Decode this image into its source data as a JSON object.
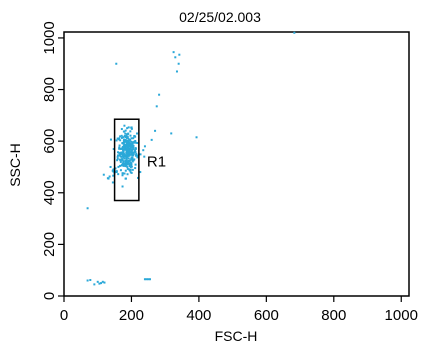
{
  "chart_data": {
    "type": "scatter",
    "title": "02/25/02.003",
    "xlabel": "FSC-H",
    "ylabel": "SSC-H",
    "xlim": [
      0,
      1023
    ],
    "ylim": [
      0,
      1023
    ],
    "xticks": [
      0,
      200,
      400,
      600,
      800,
      1000
    ],
    "yticks": [
      0,
      200,
      400,
      600,
      800,
      1000
    ],
    "point_color": "#2aa8d8",
    "gate": {
      "label": "R1",
      "x_range": [
        150,
        222
      ],
      "y_range": [
        370,
        685
      ]
    },
    "clusters": [
      {
        "cx": 188,
        "cy": 560,
        "sx": 14,
        "sy": 40,
        "n": 320
      },
      {
        "cx": 150,
        "cy": 475,
        "sx": 10,
        "sy": 10,
        "n": 14
      }
    ],
    "points": [
      [
        70,
        340
      ],
      [
        155,
        900
      ],
      [
        70,
        60
      ],
      [
        78,
        62
      ],
      [
        90,
        45
      ],
      [
        100,
        55
      ],
      [
        110,
        50
      ],
      [
        115,
        55
      ],
      [
        120,
        52
      ],
      [
        105,
        48
      ],
      [
        240,
        65
      ],
      [
        245,
        65
      ],
      [
        250,
        65
      ],
      [
        255,
        65
      ],
      [
        235,
        565
      ],
      [
        240,
        580
      ],
      [
        238,
        540
      ],
      [
        260,
        605
      ],
      [
        270,
        640
      ],
      [
        275,
        735
      ],
      [
        282,
        780
      ],
      [
        325,
        945
      ],
      [
        330,
        925
      ],
      [
        340,
        900
      ],
      [
        335,
        870
      ],
      [
        342,
        935
      ],
      [
        318,
        630
      ],
      [
        393,
        615
      ],
      [
        683,
        1020
      ],
      [
        118,
        470
      ],
      [
        132,
        455
      ],
      [
        138,
        500
      ],
      [
        145,
        440
      ]
    ]
  }
}
